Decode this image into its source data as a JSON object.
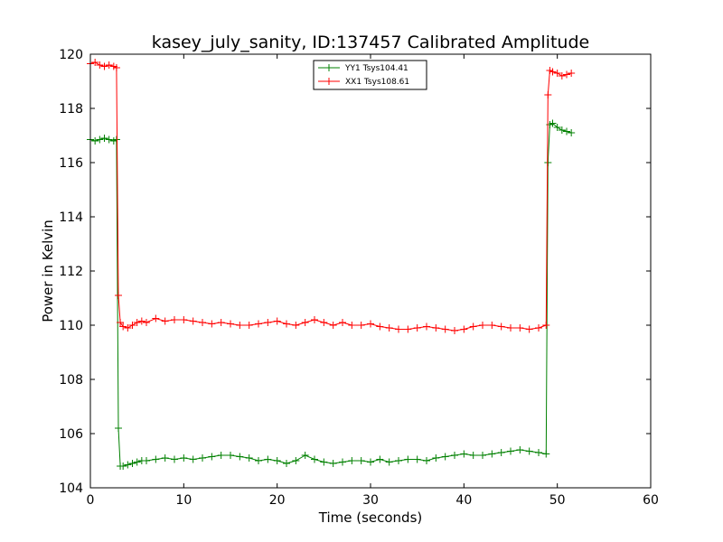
{
  "chart_data": {
    "type": "line",
    "title": "kasey_july_sanity, ID:137457 Calibrated Amplitude",
    "xlabel": "Time (seconds)",
    "ylabel": "Power in Kelvin",
    "xlim": [
      0,
      60
    ],
    "ylim": [
      104,
      120
    ],
    "xticks": [
      0,
      10,
      20,
      30,
      40,
      50,
      60
    ],
    "yticks": [
      104,
      106,
      108,
      110,
      112,
      114,
      116,
      118,
      120
    ],
    "grid": false,
    "legend_position": "top-center",
    "series": [
      {
        "name": "YY1 Tsys104.41",
        "color": "#008000",
        "x": [
          0.0,
          0.5,
          1.0,
          1.5,
          2.0,
          2.5,
          2.8,
          3.0,
          3.2,
          3.5,
          4.0,
          4.5,
          5.0,
          5.5,
          6.0,
          7.0,
          8.0,
          9.0,
          10.0,
          11.0,
          12.0,
          13.0,
          14.0,
          15.0,
          16.0,
          17.0,
          18.0,
          19.0,
          20.0,
          21.0,
          22.0,
          23.0,
          24.0,
          25.0,
          26.0,
          27.0,
          28.0,
          29.0,
          30.0,
          31.0,
          32.0,
          33.0,
          34.0,
          35.0,
          36.0,
          37.0,
          38.0,
          39.0,
          40.0,
          41.0,
          42.0,
          43.0,
          44.0,
          45.0,
          46.0,
          47.0,
          48.0,
          48.8,
          49.0,
          49.2,
          49.5,
          50.0,
          50.5,
          51.0,
          51.5
        ],
        "y": [
          116.85,
          116.8,
          116.85,
          116.9,
          116.85,
          116.8,
          116.85,
          106.2,
          104.8,
          104.8,
          104.85,
          104.9,
          104.95,
          105.0,
          105.0,
          105.05,
          105.1,
          105.05,
          105.1,
          105.05,
          105.1,
          105.15,
          105.2,
          105.2,
          105.15,
          105.1,
          105.0,
          105.05,
          105.0,
          104.9,
          105.0,
          105.2,
          105.05,
          104.95,
          104.9,
          104.95,
          105.0,
          105.0,
          104.95,
          105.05,
          104.95,
          105.0,
          105.05,
          105.05,
          105.0,
          105.1,
          105.15,
          105.2,
          105.25,
          105.2,
          105.2,
          105.25,
          105.3,
          105.35,
          105.4,
          105.35,
          105.3,
          105.25,
          116.0,
          117.4,
          117.45,
          117.3,
          117.2,
          117.15,
          117.1
        ]
      },
      {
        "name": "XX1 Tsys108.61",
        "color": "#ff0000",
        "x": [
          0.0,
          0.5,
          1.0,
          1.5,
          2.0,
          2.5,
          2.8,
          3.0,
          3.2,
          3.5,
          4.0,
          4.5,
          5.0,
          5.5,
          6.0,
          7.0,
          8.0,
          9.0,
          10.0,
          11.0,
          12.0,
          13.0,
          14.0,
          15.0,
          16.0,
          17.0,
          18.0,
          19.0,
          20.0,
          21.0,
          22.0,
          23.0,
          24.0,
          25.0,
          26.0,
          27.0,
          28.0,
          29.0,
          30.0,
          31.0,
          32.0,
          33.0,
          34.0,
          35.0,
          36.0,
          37.0,
          38.0,
          39.0,
          40.0,
          41.0,
          42.0,
          43.0,
          44.0,
          45.0,
          46.0,
          47.0,
          48.0,
          48.8,
          49.0,
          49.2,
          49.5,
          50.0,
          50.5,
          51.0,
          51.5
        ],
        "y": [
          119.65,
          119.7,
          119.6,
          119.55,
          119.6,
          119.55,
          119.5,
          111.1,
          110.1,
          109.95,
          109.9,
          110.0,
          110.1,
          110.15,
          110.1,
          110.25,
          110.15,
          110.2,
          110.2,
          110.15,
          110.1,
          110.05,
          110.1,
          110.05,
          110.0,
          110.0,
          110.05,
          110.1,
          110.15,
          110.05,
          110.0,
          110.1,
          110.2,
          110.1,
          110.0,
          110.1,
          110.0,
          110.0,
          110.05,
          109.95,
          109.9,
          109.85,
          109.85,
          109.9,
          109.95,
          109.9,
          109.85,
          109.8,
          109.85,
          109.95,
          110.0,
          110.0,
          109.95,
          109.9,
          109.9,
          109.85,
          109.9,
          110.0,
          118.5,
          119.4,
          119.35,
          119.3,
          119.2,
          119.25,
          119.3
        ]
      }
    ]
  }
}
